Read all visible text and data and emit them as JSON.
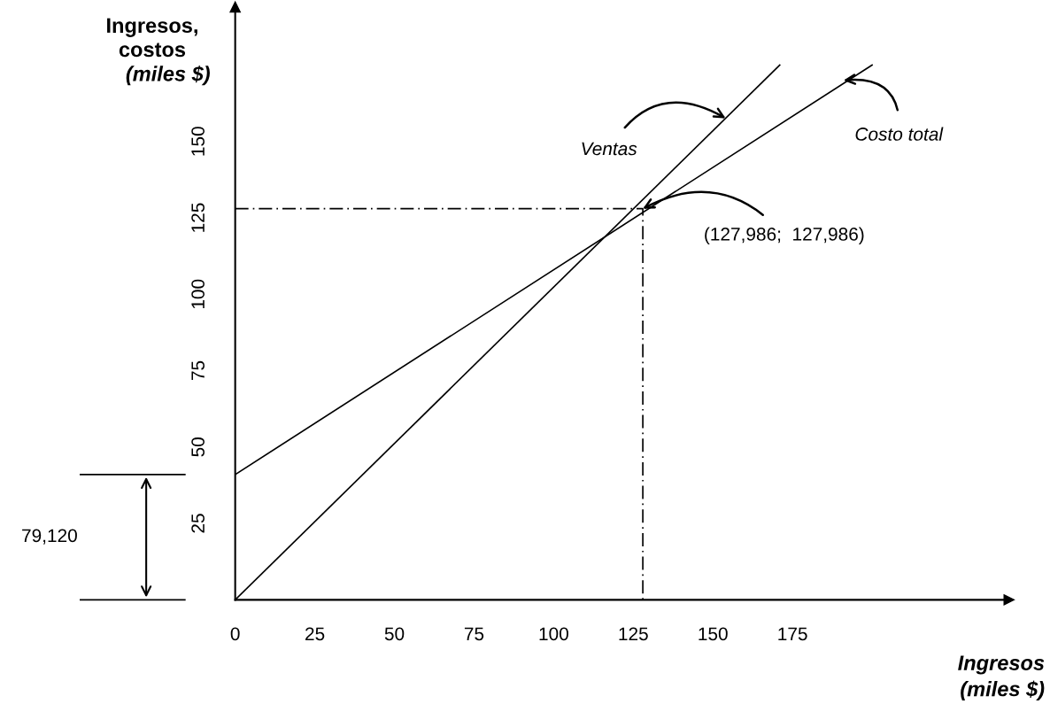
{
  "chart_data": {
    "type": "line",
    "xlabel": "Ingresos\n(miles $)",
    "ylabel": "Ingresos,\ncostos\n(miles $)",
    "xlim": [
      0,
      243
    ],
    "ylim": [
      0,
      194
    ],
    "xticks": [
      0,
      25,
      50,
      75,
      100,
      125,
      150,
      175
    ],
    "yticks": [
      25,
      50,
      75,
      100,
      125,
      150
    ],
    "grid": false,
    "line_style": "solid",
    "series": [
      {
        "color": "#000000",
        "x": [
          0,
          171
        ],
        "values": [
          0,
          175
        ]
      },
      {
        "color": "#000000",
        "x": [
          0,
          200
        ],
        "values": [
          41,
          175
        ]
      },
      {
        "color": "#000000",
        "x": [
          0,
          128,
          128
        ],
        "values": [
          128,
          128,
          0
        ],
        "line_style": "dashed"
      }
    ],
    "annotations": [
      {
        "text": "Ventas",
        "x": 154,
        "y": 157.6
      },
      {
        "text": "Costo total",
        "x": 191,
        "y": 170
      },
      {
        "text": "(127,986;  127,986)",
        "x": 128,
        "y": 128
      },
      "79,120"
    ]
  }
}
